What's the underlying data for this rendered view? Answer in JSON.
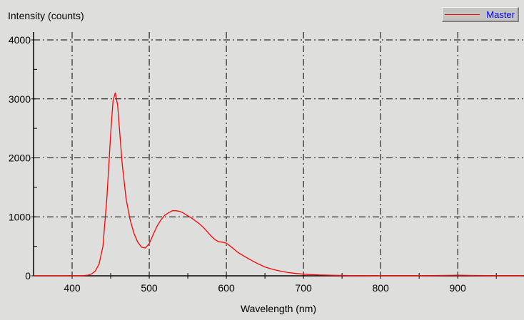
{
  "chart_data": {
    "type": "line",
    "title": "",
    "xlabel": "Wavelength (nm)",
    "ylabel": "Intensity (counts)",
    "xlim": [
      350,
      985
    ],
    "ylim": [
      0,
      4000
    ],
    "xticks": [
      400,
      500,
      600,
      700,
      800,
      900
    ],
    "yticks": [
      0,
      1000,
      2000,
      3000,
      4000
    ],
    "grid": true,
    "legend_position": "top-right",
    "series": [
      {
        "name": "Master",
        "color": "#ff0000",
        "x": [
          350,
          380,
          410,
          415,
          420,
          425,
          430,
          435,
          440,
          445,
          450,
          453,
          456,
          459,
          462,
          465,
          470,
          475,
          480,
          485,
          490,
          495,
          500,
          505,
          510,
          515,
          520,
          525,
          530,
          535,
          540,
          545,
          550,
          555,
          560,
          565,
          570,
          575,
          580,
          585,
          590,
          595,
          600,
          605,
          610,
          615,
          620,
          630,
          640,
          650,
          660,
          670,
          680,
          690,
          700,
          710,
          720,
          740,
          760,
          800,
          850,
          880,
          900,
          920,
          950,
          985
        ],
        "y": [
          0,
          0,
          2,
          5,
          10,
          30,
          80,
          200,
          500,
          1300,
          2400,
          2950,
          3100,
          2900,
          2400,
          1900,
          1300,
          950,
          720,
          580,
          500,
          480,
          540,
          680,
          830,
          950,
          1040,
          1080,
          1100,
          1090,
          1080,
          1060,
          1030,
          990,
          930,
          870,
          810,
          750,
          690,
          630,
          580,
          560,
          540,
          500,
          460,
          410,
          360,
          280,
          210,
          150,
          110,
          80,
          55,
          40,
          28,
          20,
          14,
          8,
          4,
          2,
          2,
          6,
          10,
          6,
          3,
          2
        ]
      }
    ]
  }
}
